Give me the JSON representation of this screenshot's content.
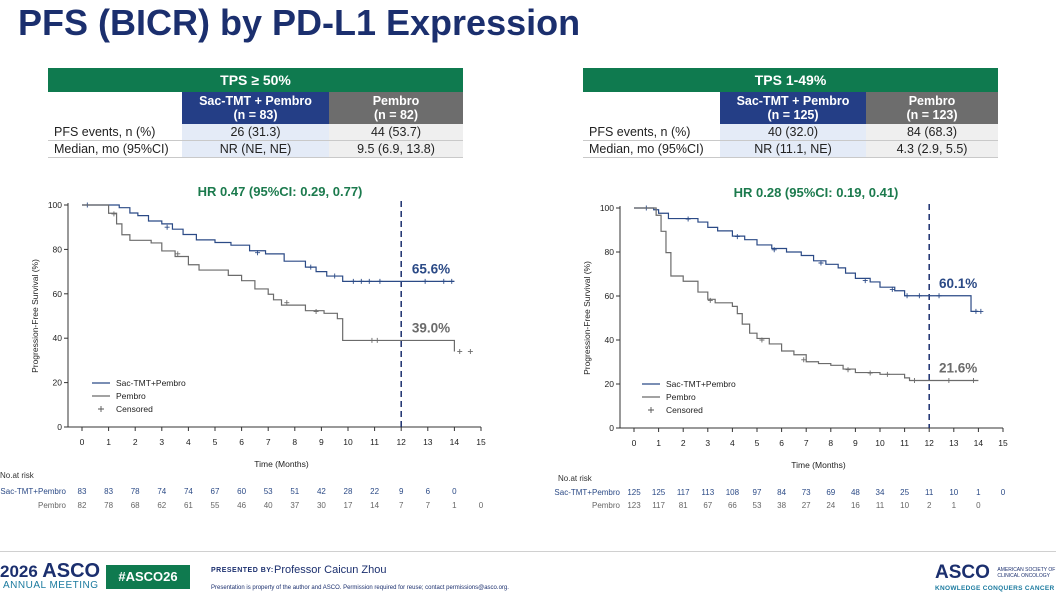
{
  "page": {
    "title": "PFS (BICR) by PD-L1 Expression"
  },
  "tables": [
    {
      "header": "TPS ≥ 50%",
      "col1": "Sac-TMT + Pembro",
      "col1_n": "(n = 83)",
      "col2": "Pembro",
      "col2_n": "(n = 82)",
      "row1_label": "PFS events, n (%)",
      "row1_v1": "26 (31.3)",
      "row1_v2": "44 (53.7)",
      "row2_label": "Median, mo (95%CI)",
      "row2_v1": "NR (NE, NE)",
      "row2_v2": "9.5 (6.9, 13.8)"
    },
    {
      "header": "TPS 1-49%",
      "col1": "Sac-TMT + Pembro",
      "col1_n": "(n = 125)",
      "col2": "Pembro",
      "col2_n": "(n = 123)",
      "row1_label": "PFS events, n (%)",
      "row1_v1": "40 (32.0)",
      "row1_v2": "84 (68.3)",
      "row2_label": "Median, mo (95%CI)",
      "row2_v1": "NR (11.1, NE)",
      "row2_v2": "4.3 (2.9, 5.5)"
    }
  ],
  "colors": {
    "title": "#1b2f6e",
    "table_header": "#0f7a4f",
    "sac_tmt": "#2b4a86",
    "pembro": "#6b6b6b",
    "hr_text": "#1b7a4d"
  },
  "chart_data": [
    {
      "type": "line",
      "title": "HR 0.47 (95%CI: 0.29, 0.77)",
      "xlabel": "Time (Months)",
      "ylabel": "Progression-Free Survival (%)",
      "xlim": [
        0,
        15
      ],
      "ylim": [
        0,
        100
      ],
      "x_ticks": [
        0,
        1,
        2,
        3,
        4,
        5,
        6,
        7,
        8,
        9,
        10,
        11,
        12,
        13,
        14,
        15
      ],
      "y_ticks": [
        0,
        20,
        40,
        60,
        80,
        100
      ],
      "grid": false,
      "legend_position": "bottom-left",
      "landmark_month": 12,
      "legend": [
        "Sac-TMT+Pembro",
        "Pembro",
        "Censored"
      ],
      "series": [
        {
          "name": "Sac-TMT+Pembro",
          "color": "#2b4a86",
          "steps": [
            [
              0,
              100
            ],
            [
              1.4,
              98.8
            ],
            [
              1.8,
              96.4
            ],
            [
              2.1,
              95.2
            ],
            [
              2.5,
              92.8
            ],
            [
              3.0,
              91.5
            ],
            [
              3.4,
              89.1
            ],
            [
              3.8,
              86.7
            ],
            [
              4.3,
              84.3
            ],
            [
              5.0,
              83.1
            ],
            [
              5.6,
              81.9
            ],
            [
              6.3,
              79.4
            ],
            [
              6.9,
              78.0
            ],
            [
              7.6,
              74.7
            ],
            [
              8.4,
              72.0
            ],
            [
              8.8,
              70.0
            ],
            [
              9.2,
              68.0
            ],
            [
              9.8,
              65.6
            ],
            [
              14.0,
              65.6
            ]
          ],
          "censored": [
            [
              0.2,
              100
            ],
            [
              3.2,
              90
            ],
            [
              6.6,
              78.5
            ],
            [
              8.6,
              72
            ],
            [
              9.5,
              68
            ],
            [
              10.2,
              65.6
            ],
            [
              10.5,
              65.6
            ],
            [
              10.8,
              65.6
            ],
            [
              11.2,
              65.6
            ],
            [
              12.9,
              65.6
            ],
            [
              13.6,
              65.6
            ],
            [
              13.9,
              65.6
            ]
          ],
          "annotation": "65.6%"
        },
        {
          "name": "Pembro",
          "color": "#6b6b6b",
          "steps": [
            [
              0,
              100
            ],
            [
              1.0,
              96.3
            ],
            [
              1.3,
              91.5
            ],
            [
              1.5,
              86.6
            ],
            [
              1.8,
              84.1
            ],
            [
              2.6,
              82.9
            ],
            [
              3.0,
              79.3
            ],
            [
              3.5,
              76.8
            ],
            [
              4.0,
              73.1
            ],
            [
              4.4,
              70.7
            ],
            [
              5.5,
              68.3
            ],
            [
              6.0,
              65.9
            ],
            [
              6.5,
              62.2
            ],
            [
              7.0,
              59.8
            ],
            [
              7.2,
              57.3
            ],
            [
              7.5,
              54.9
            ],
            [
              8.4,
              52.4
            ],
            [
              9.1,
              51.2
            ],
            [
              9.6,
              48.8
            ],
            [
              9.8,
              39.0
            ],
            [
              13.8,
              39.0
            ],
            [
              14.0,
              34.0
            ]
          ],
          "censored": [
            [
              1.2,
              96
            ],
            [
              3.6,
              78
            ],
            [
              7.7,
              56
            ],
            [
              8.8,
              52
            ],
            [
              10.9,
              39
            ],
            [
              11.1,
              39
            ],
            [
              14.2,
              34
            ],
            [
              14.6,
              34
            ]
          ],
          "annotation": "39.0%"
        }
      ],
      "at_risk_label": "No.at risk",
      "at_risk": [
        {
          "name": "Sac-TMT+Pembro",
          "values": [
            "83",
            "83",
            "78",
            "74",
            "74",
            "67",
            "60",
            "53",
            "51",
            "42",
            "28",
            "22",
            "9",
            "6",
            "0",
            ""
          ]
        },
        {
          "name": "Pembro",
          "values": [
            "82",
            "78",
            "68",
            "62",
            "61",
            "55",
            "46",
            "40",
            "37",
            "30",
            "17",
            "14",
            "7",
            "7",
            "1",
            "0"
          ]
        }
      ]
    },
    {
      "type": "line",
      "title": "HR 0.28 (95%CI: 0.19, 0.41)",
      "xlabel": "Time (Months)",
      "ylabel": "Progression-Free Survival (%)",
      "xlim": [
        0,
        15
      ],
      "ylim": [
        0,
        100
      ],
      "x_ticks": [
        0,
        1,
        2,
        3,
        4,
        5,
        6,
        7,
        8,
        9,
        10,
        11,
        12,
        13,
        14,
        15
      ],
      "y_ticks": [
        0,
        20,
        40,
        60,
        80,
        100
      ],
      "grid": false,
      "legend_position": "bottom-left",
      "landmark_month": 12,
      "legend": [
        "Sac-TMT+Pembro",
        "Pembro",
        "Censored"
      ],
      "series": [
        {
          "name": "Sac-TMT+Pembro",
          "color": "#2b4a86",
          "steps": [
            [
              0,
              100
            ],
            [
              0.8,
              99.2
            ],
            [
              1.0,
              97.6
            ],
            [
              1.4,
              95.2
            ],
            [
              2.6,
              93.6
            ],
            [
              3.0,
              91.2
            ],
            [
              3.4,
              89.6
            ],
            [
              4.0,
              87.2
            ],
            [
              4.5,
              85.6
            ],
            [
              5.0,
              83.2
            ],
            [
              5.6,
              81.6
            ],
            [
              6.2,
              80.0
            ],
            [
              6.8,
              78.4
            ],
            [
              7.3,
              76.0
            ],
            [
              7.8,
              74.4
            ],
            [
              8.3,
              72.8
            ],
            [
              8.6,
              70.4
            ],
            [
              9.0,
              68.0
            ],
            [
              9.6,
              66.4
            ],
            [
              10.0,
              64.0
            ],
            [
              10.6,
              62.4
            ],
            [
              11.0,
              60.1
            ],
            [
              13.5,
              60.1
            ],
            [
              13.7,
              53.0
            ],
            [
              14.0,
              53.0
            ]
          ],
          "censored": [
            [
              0.5,
              100
            ],
            [
              2.2,
              95
            ],
            [
              4.2,
              87
            ],
            [
              5.7,
              81
            ],
            [
              7.6,
              75
            ],
            [
              9.4,
              67
            ],
            [
              10.5,
              63
            ],
            [
              11.1,
              60.1
            ],
            [
              11.6,
              60.1
            ],
            [
              12.4,
              60.1
            ],
            [
              13.9,
              53
            ],
            [
              14.1,
              53
            ]
          ],
          "annotation": "60.1%"
        },
        {
          "name": "Pembro",
          "color": "#6b6b6b",
          "steps": [
            [
              0,
              100
            ],
            [
              0.9,
              96.7
            ],
            [
              1.1,
              89.4
            ],
            [
              1.3,
              79.7
            ],
            [
              1.5,
              69.1
            ],
            [
              2.0,
              66.7
            ],
            [
              2.6,
              61.8
            ],
            [
              3.0,
              58.5
            ],
            [
              3.3,
              56.9
            ],
            [
              4.0,
              55.3
            ],
            [
              4.2,
              52.0
            ],
            [
              4.4,
              47.2
            ],
            [
              4.7,
              43.1
            ],
            [
              5.0,
              40.7
            ],
            [
              5.5,
              38.2
            ],
            [
              6.0,
              35.0
            ],
            [
              6.5,
              33.3
            ],
            [
              7.0,
              30.1
            ],
            [
              7.5,
              29.3
            ],
            [
              8.0,
              28.5
            ],
            [
              8.5,
              26.8
            ],
            [
              9.0,
              25.2
            ],
            [
              10.0,
              24.4
            ],
            [
              11.0,
              22.8
            ],
            [
              11.2,
              21.6
            ],
            [
              14.0,
              21.6
            ]
          ],
          "censored": [
            [
              3.1,
              58
            ],
            [
              5.2,
              40
            ],
            [
              6.9,
              31
            ],
            [
              8.7,
              26.5
            ],
            [
              9.6,
              25
            ],
            [
              10.3,
              24.4
            ],
            [
              11.4,
              21.6
            ],
            [
              12.8,
              21.6
            ],
            [
              13.8,
              21.6
            ]
          ],
          "annotation": "21.6%"
        }
      ],
      "at_risk_label": "No.at risk",
      "at_risk": [
        {
          "name": "Sac-TMT+Pembro",
          "values": [
            "125",
            "125",
            "117",
            "113",
            "108",
            "97",
            "84",
            "73",
            "69",
            "48",
            "34",
            "25",
            "11",
            "10",
            "1",
            "0"
          ]
        },
        {
          "name": "Pembro",
          "values": [
            "123",
            "117",
            "81",
            "67",
            "66",
            "53",
            "38",
            "27",
            "24",
            "16",
            "11",
            "10",
            "2",
            "1",
            "0",
            ""
          ]
        }
      ]
    }
  ],
  "footer": {
    "meeting_year": "2026",
    "meeting_brand": "ASCO",
    "meeting_sub": "ANNUAL MEETING",
    "hashtag": "#ASCO26",
    "presented_by_label": "PRESENTED BY:",
    "presenter": "Professor Caicun Zhou",
    "notice": "Presentation is property of the author and ASCO. Permission required for reuse; contact permissions@asco.org.",
    "logo_brand": "ASCO",
    "logo_line1": "AMERICAN SOCIETY OF",
    "logo_line2": "CLINICAL ONCOLOGY",
    "tagline": "KNOWLEDGE CONQUERS CANCER"
  }
}
